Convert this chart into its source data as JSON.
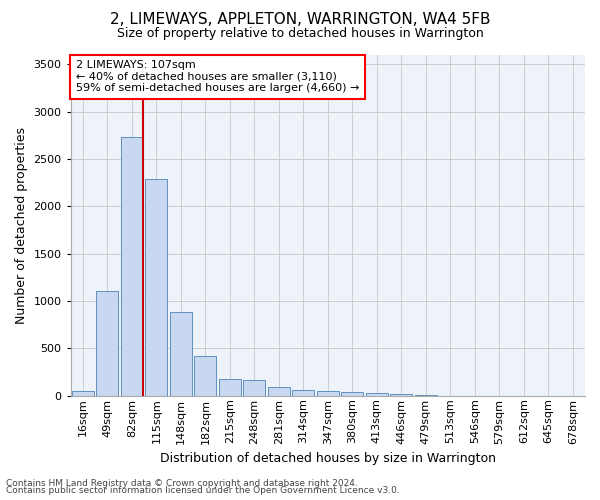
{
  "title1": "2, LIMEWAYS, APPLETON, WARRINGTON, WA4 5FB",
  "title2": "Size of property relative to detached houses in Warrington",
  "xlabel": "Distribution of detached houses by size in Warrington",
  "ylabel": "Number of detached properties",
  "categories": [
    "16sqm",
    "49sqm",
    "82sqm",
    "115sqm",
    "148sqm",
    "182sqm",
    "215sqm",
    "248sqm",
    "281sqm",
    "314sqm",
    "347sqm",
    "380sqm",
    "413sqm",
    "446sqm",
    "479sqm",
    "513sqm",
    "546sqm",
    "579sqm",
    "612sqm",
    "645sqm",
    "678sqm"
  ],
  "values": [
    50,
    1110,
    2730,
    2290,
    880,
    420,
    175,
    170,
    90,
    60,
    55,
    35,
    30,
    20,
    5,
    0,
    0,
    0,
    0,
    0,
    0
  ],
  "bar_color": "#c8d8f0",
  "bar_edge_color": "#6090c0",
  "grid_color": "#cccccc",
  "bg_color": "#eef2f9",
  "vline_color": "#cc0000",
  "annotation_line1": "2 LIMEWAYS: 107sqm",
  "annotation_line2": "← 40% of detached houses are smaller (3,110)",
  "annotation_line3": "59% of semi-detached houses are larger (4,660) →",
  "footer1": "Contains HM Land Registry data © Crown copyright and database right 2024.",
  "footer2": "Contains public sector information licensed under the Open Government Licence v3.0.",
  "ylim": [
    0,
    3600
  ],
  "yticks": [
    0,
    500,
    1000,
    1500,
    2000,
    2500,
    3000,
    3500
  ],
  "title1_fontsize": 11,
  "title2_fontsize": 9,
  "ylabel_fontsize": 9,
  "xlabel_fontsize": 9,
  "tick_fontsize": 8,
  "footer_fontsize": 6.5
}
